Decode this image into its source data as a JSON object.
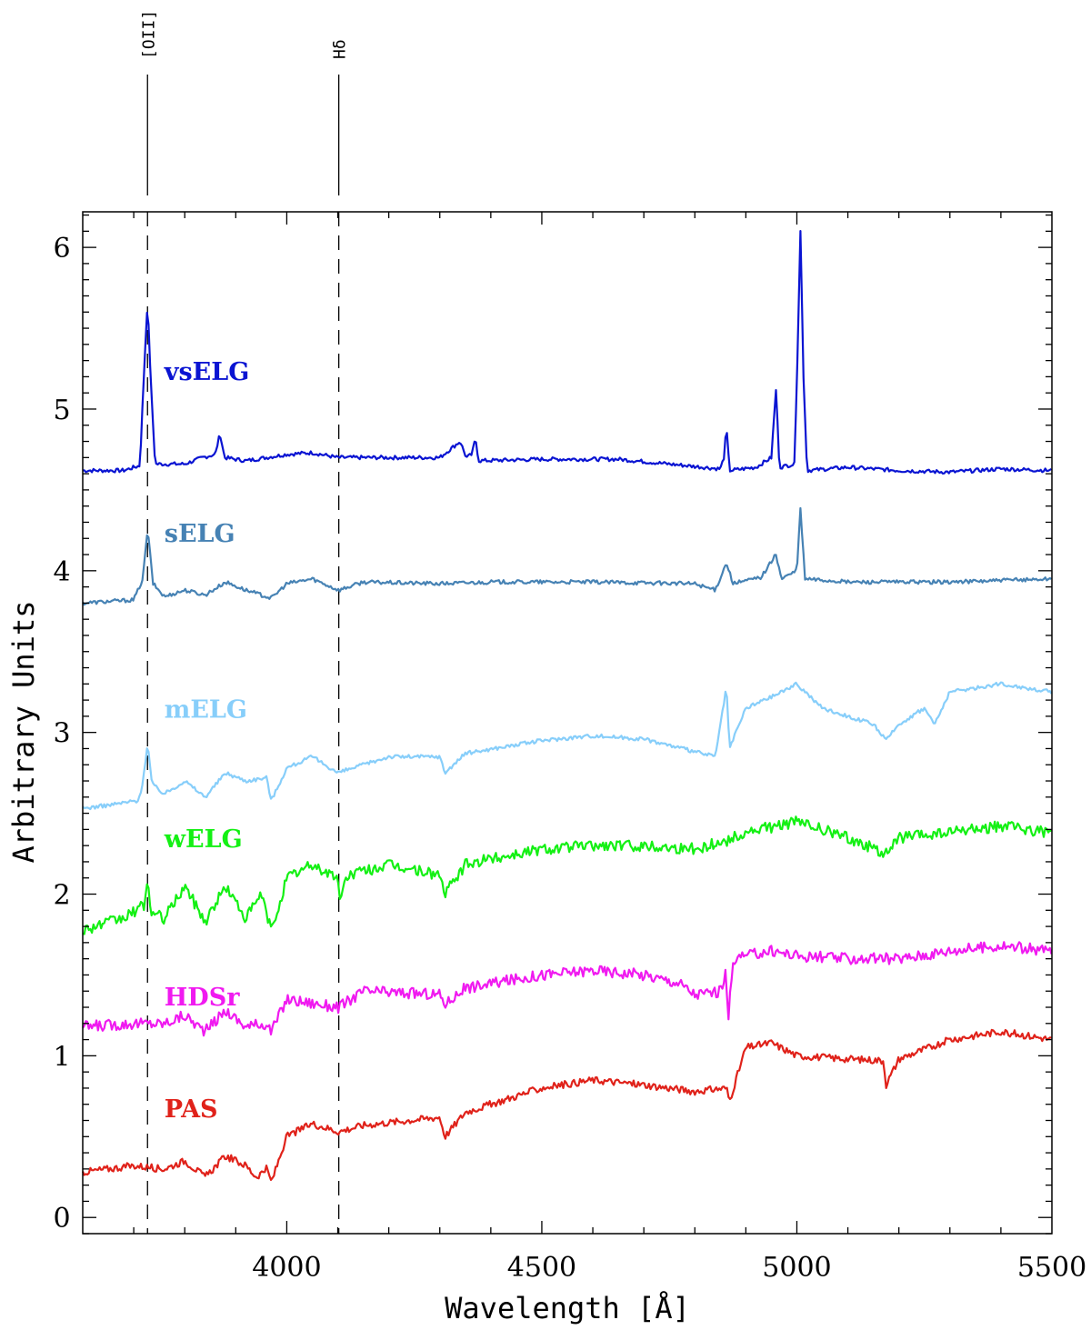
{
  "chart_data": {
    "type": "line",
    "xlabel": "Wavelength [Å]",
    "ylabel": "Arbitrary Units",
    "xlim": [
      3600,
      5500
    ],
    "ylim": [
      -0.1,
      6.22
    ],
    "xticks": [
      4000,
      4500,
      5000,
      5500
    ],
    "xtick_labels": [
      "4000",
      "4500",
      "5000",
      "5500"
    ],
    "yticks": [
      0,
      1,
      2,
      3,
      4,
      5,
      6
    ],
    "ytick_labels": [
      "0",
      "1",
      "2",
      "3",
      "4",
      "5",
      "6"
    ],
    "grid": false,
    "reference_lines": [
      {
        "label": "[OII]",
        "x": 3727
      },
      {
        "label": "Hδ",
        "x": 4102
      }
    ],
    "series": [
      {
        "name": "vsELG",
        "color": "#0a14d2",
        "label_at": [
          3760,
          5.18
        ],
        "points": [
          [
            3600,
            4.62
          ],
          [
            3680,
            4.62
          ],
          [
            3712,
            4.65
          ],
          [
            3722,
            5.35
          ],
          [
            3727,
            5.67
          ],
          [
            3733,
            5.2
          ],
          [
            3742,
            4.66
          ],
          [
            3800,
            4.66
          ],
          [
            3835,
            4.7
          ],
          [
            3860,
            4.72
          ],
          [
            3869,
            4.85
          ],
          [
            3878,
            4.7
          ],
          [
            3920,
            4.68
          ],
          [
            3960,
            4.7
          ],
          [
            4000,
            4.72
          ],
          [
            4050,
            4.73
          ],
          [
            4100,
            4.7
          ],
          [
            4200,
            4.7
          ],
          [
            4300,
            4.7
          ],
          [
            4340,
            4.8
          ],
          [
            4352,
            4.7
          ],
          [
            4363,
            4.72
          ],
          [
            4370,
            4.82
          ],
          [
            4376,
            4.68
          ],
          [
            4500,
            4.69
          ],
          [
            4650,
            4.69
          ],
          [
            4750,
            4.66
          ],
          [
            4850,
            4.63
          ],
          [
            4857,
            4.7
          ],
          [
            4862,
            4.89
          ],
          [
            4868,
            4.62
          ],
          [
            4920,
            4.64
          ],
          [
            4950,
            4.7
          ],
          [
            4959,
            5.12
          ],
          [
            4966,
            4.64
          ],
          [
            4995,
            4.66
          ],
          [
            5001,
            5.3
          ],
          [
            5007,
            6.1
          ],
          [
            5013,
            5.2
          ],
          [
            5020,
            4.62
          ],
          [
            5100,
            4.64
          ],
          [
            5200,
            4.62
          ],
          [
            5300,
            4.61
          ],
          [
            5400,
            4.63
          ],
          [
            5500,
            4.62
          ]
        ]
      },
      {
        "name": "sELG",
        "color": "#4682b4",
        "label_at": [
          3760,
          4.18
        ],
        "points": [
          [
            3600,
            3.8
          ],
          [
            3700,
            3.82
          ],
          [
            3718,
            3.95
          ],
          [
            3727,
            4.26
          ],
          [
            3738,
            3.92
          ],
          [
            3760,
            3.84
          ],
          [
            3800,
            3.88
          ],
          [
            3840,
            3.85
          ],
          [
            3880,
            3.93
          ],
          [
            3920,
            3.88
          ],
          [
            3970,
            3.83
          ],
          [
            4000,
            3.92
          ],
          [
            4050,
            3.95
          ],
          [
            4102,
            3.88
          ],
          [
            4150,
            3.93
          ],
          [
            4300,
            3.92
          ],
          [
            4400,
            3.93
          ],
          [
            4600,
            3.93
          ],
          [
            4800,
            3.92
          ],
          [
            4840,
            3.88
          ],
          [
            4862,
            4.05
          ],
          [
            4875,
            3.92
          ],
          [
            4930,
            3.96
          ],
          [
            4959,
            4.1
          ],
          [
            4970,
            3.95
          ],
          [
            5000,
            4.0
          ],
          [
            5007,
            4.38
          ],
          [
            5016,
            3.95
          ],
          [
            5100,
            3.93
          ],
          [
            5300,
            3.93
          ],
          [
            5500,
            3.95
          ]
        ]
      },
      {
        "name": "mELG",
        "color": "#87cefa",
        "label_at": [
          3760,
          3.09
        ],
        "points": [
          [
            3600,
            2.53
          ],
          [
            3650,
            2.55
          ],
          [
            3710,
            2.58
          ],
          [
            3718,
            2.7
          ],
          [
            3727,
            2.93
          ],
          [
            3736,
            2.68
          ],
          [
            3760,
            2.62
          ],
          [
            3800,
            2.7
          ],
          [
            3840,
            2.6
          ],
          [
            3880,
            2.75
          ],
          [
            3920,
            2.7
          ],
          [
            3960,
            2.72
          ],
          [
            3970,
            2.58
          ],
          [
            4000,
            2.78
          ],
          [
            4050,
            2.85
          ],
          [
            4100,
            2.75
          ],
          [
            4200,
            2.85
          ],
          [
            4300,
            2.85
          ],
          [
            4310,
            2.75
          ],
          [
            4350,
            2.87
          ],
          [
            4500,
            2.95
          ],
          [
            4600,
            2.98
          ],
          [
            4700,
            2.96
          ],
          [
            4750,
            2.92
          ],
          [
            4840,
            2.85
          ],
          [
            4862,
            3.28
          ],
          [
            4868,
            2.9
          ],
          [
            4900,
            3.15
          ],
          [
            4950,
            3.22
          ],
          [
            5000,
            3.3
          ],
          [
            5050,
            3.15
          ],
          [
            5100,
            3.1
          ],
          [
            5150,
            3.05
          ],
          [
            5175,
            2.95
          ],
          [
            5200,
            3.05
          ],
          [
            5250,
            3.15
          ],
          [
            5270,
            3.05
          ],
          [
            5300,
            3.25
          ],
          [
            5400,
            3.3
          ],
          [
            5500,
            3.25
          ]
        ]
      },
      {
        "name": "wELG",
        "color": "#14f014",
        "label_at": [
          3760,
          2.29
        ],
        "points": [
          [
            3600,
            1.78
          ],
          [
            3680,
            1.85
          ],
          [
            3720,
            1.93
          ],
          [
            3727,
            2.08
          ],
          [
            3735,
            1.88
          ],
          [
            3760,
            1.85
          ],
          [
            3800,
            2.05
          ],
          [
            3840,
            1.83
          ],
          [
            3880,
            2.05
          ],
          [
            3920,
            1.85
          ],
          [
            3950,
            2.0
          ],
          [
            3970,
            1.77
          ],
          [
            4000,
            2.1
          ],
          [
            4050,
            2.18
          ],
          [
            4100,
            2.1
          ],
          [
            4102,
            1.97
          ],
          [
            4120,
            2.12
          ],
          [
            4200,
            2.18
          ],
          [
            4300,
            2.12
          ],
          [
            4310,
            2.0
          ],
          [
            4350,
            2.18
          ],
          [
            4400,
            2.22
          ],
          [
            4500,
            2.28
          ],
          [
            4600,
            2.3
          ],
          [
            4700,
            2.3
          ],
          [
            4800,
            2.28
          ],
          [
            4862,
            2.33
          ],
          [
            4900,
            2.38
          ],
          [
            5000,
            2.45
          ],
          [
            5100,
            2.35
          ],
          [
            5175,
            2.25
          ],
          [
            5200,
            2.35
          ],
          [
            5300,
            2.38
          ],
          [
            5400,
            2.42
          ],
          [
            5500,
            2.38
          ]
        ]
      },
      {
        "name": "HDSr",
        "color": "#f01af0",
        "label_at": [
          3760,
          1.31
        ],
        "points": [
          [
            3600,
            1.18
          ],
          [
            3700,
            1.2
          ],
          [
            3760,
            1.2
          ],
          [
            3800,
            1.25
          ],
          [
            3840,
            1.15
          ],
          [
            3880,
            1.28
          ],
          [
            3920,
            1.18
          ],
          [
            3960,
            1.2
          ],
          [
            3970,
            1.15
          ],
          [
            4000,
            1.35
          ],
          [
            4102,
            1.3
          ],
          [
            4150,
            1.4
          ],
          [
            4300,
            1.38
          ],
          [
            4310,
            1.32
          ],
          [
            4350,
            1.42
          ],
          [
            4500,
            1.5
          ],
          [
            4600,
            1.53
          ],
          [
            4700,
            1.5
          ],
          [
            4770,
            1.45
          ],
          [
            4800,
            1.38
          ],
          [
            4850,
            1.4
          ],
          [
            4860,
            1.5
          ],
          [
            4866,
            1.25
          ],
          [
            4875,
            1.6
          ],
          [
            4950,
            1.65
          ],
          [
            5000,
            1.62
          ],
          [
            5100,
            1.6
          ],
          [
            5200,
            1.6
          ],
          [
            5300,
            1.65
          ],
          [
            5400,
            1.68
          ],
          [
            5500,
            1.65
          ]
        ]
      },
      {
        "name": "PAS",
        "color": "#e0221a",
        "label_at": [
          3760,
          0.62
        ],
        "points": [
          [
            3600,
            0.28
          ],
          [
            3700,
            0.32
          ],
          [
            3760,
            0.3
          ],
          [
            3800,
            0.35
          ],
          [
            3840,
            0.25
          ],
          [
            3880,
            0.38
          ],
          [
            3920,
            0.32
          ],
          [
            3940,
            0.25
          ],
          [
            3960,
            0.3
          ],
          [
            3970,
            0.22
          ],
          [
            4000,
            0.5
          ],
          [
            4050,
            0.58
          ],
          [
            4102,
            0.53
          ],
          [
            4150,
            0.57
          ],
          [
            4300,
            0.62
          ],
          [
            4310,
            0.5
          ],
          [
            4350,
            0.65
          ],
          [
            4500,
            0.8
          ],
          [
            4600,
            0.85
          ],
          [
            4700,
            0.82
          ],
          [
            4800,
            0.78
          ],
          [
            4862,
            0.8
          ],
          [
            4868,
            0.72
          ],
          [
            4900,
            1.05
          ],
          [
            4950,
            1.08
          ],
          [
            5000,
            1.0
          ],
          [
            5100,
            0.98
          ],
          [
            5170,
            0.97
          ],
          [
            5175,
            0.82
          ],
          [
            5200,
            0.98
          ],
          [
            5300,
            1.1
          ],
          [
            5400,
            1.15
          ],
          [
            5500,
            1.1
          ]
        ]
      }
    ]
  }
}
